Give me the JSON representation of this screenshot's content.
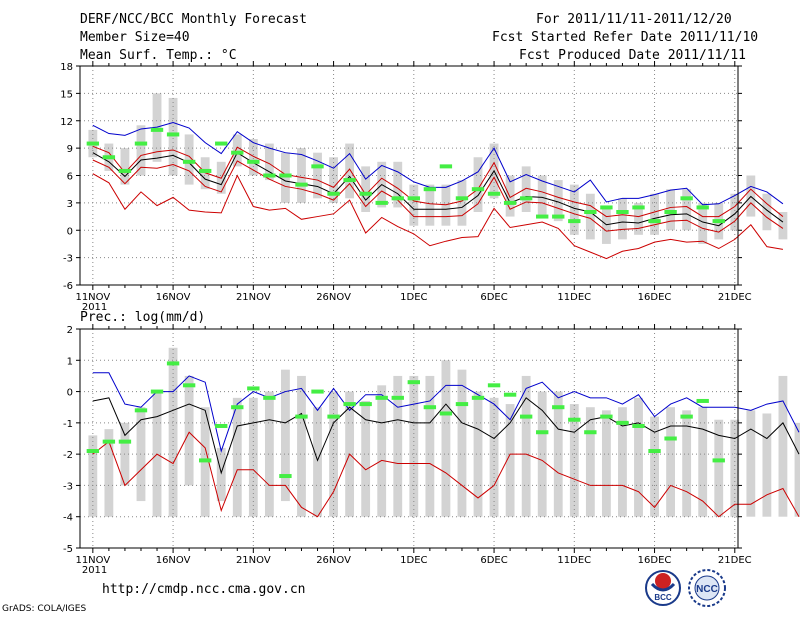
{
  "header": {
    "title": "DERF/NCC/BCC Monthly Forecast",
    "member_size": "Member Size=40",
    "period": "For 2011/11/11-2011/12/20",
    "started": "Fcst Started Refer Date 2011/11/10",
    "produced": "Fcst Produced Date 2011/11/11"
  },
  "footer": {
    "url": "http://cmdp.ncc.cma.gov.cn",
    "grads": "GrADS: COLA/IGES",
    "logo_bcc_text": "BCC",
    "logo_ncc_text": "NCC"
  },
  "colors": {
    "bar": "#d3d3d3",
    "mean": "#000000",
    "upper": "#0000cc",
    "lower": "#cc0000",
    "obs": "#44ee44",
    "grid": "#888888"
  },
  "chart_data": [
    {
      "type": "line",
      "title": "Mean Surf. Temp.: °C",
      "x_start_day": 0,
      "ylim": [
        -6,
        18
      ],
      "yticks": [
        -6,
        -3,
        0,
        3,
        6,
        9,
        12,
        15,
        18
      ],
      "xticks": [
        {
          "day": 0,
          "label": "11NOV",
          "label2": "2011"
        },
        {
          "day": 5,
          "label": "16NOV"
        },
        {
          "day": 10,
          "label": "21NOV"
        },
        {
          "day": 15,
          "label": "26NOV"
        },
        {
          "day": 20,
          "label": "1DEC"
        },
        {
          "day": 25,
          "label": "6DEC"
        },
        {
          "day": 30,
          "label": "11DEC"
        },
        {
          "day": 35,
          "label": "16DEC"
        },
        {
          "day": 40,
          "label": "21DEC"
        }
      ],
      "series": [
        {
          "name": "upper",
          "values": [
            11.5,
            10.6,
            10.4,
            11.1,
            11.3,
            11.8,
            11.2,
            9.6,
            8.4,
            10.8,
            9.6,
            9.0,
            8.5,
            8.3,
            7.6,
            6.8,
            8.4,
            5.6,
            7.1,
            6.4,
            5.3,
            4.7,
            4.7,
            5.4,
            6.4,
            9.0,
            5.3,
            6.1,
            5.4,
            4.8,
            4.2,
            5.5,
            3.1,
            3.5,
            3.5,
            3.9,
            4.4,
            4.6,
            2.8,
            2.9,
            3.8,
            4.8,
            4.2,
            2.9
          ]
        },
        {
          "name": "mean_upper",
          "values": [
            9.2,
            8.5,
            6.3,
            8.2,
            8.6,
            8.8,
            8.1,
            6.3,
            5.7,
            9.1,
            8.1,
            7.3,
            6.1,
            5.8,
            5.5,
            4.7,
            6.7,
            3.9,
            5.7,
            4.6,
            3.2,
            2.9,
            2.8,
            3.2,
            4.5,
            7.4,
            3.6,
            4.6,
            4.2,
            3.6,
            3.1,
            2.7,
            1.5,
            1.7,
            1.5,
            2.0,
            2.5,
            2.6,
            1.5,
            1.5,
            2.6,
            4.5,
            2.9,
            1.5
          ]
        },
        {
          "name": "mean",
          "values": [
            8.5,
            7.5,
            5.9,
            7.7,
            7.9,
            8.2,
            7.4,
            5.6,
            5.0,
            8.5,
            7.4,
            6.4,
            5.4,
            5.1,
            4.8,
            4.0,
            5.9,
            3.3,
            5.0,
            4.0,
            2.3,
            2.3,
            2.3,
            2.5,
            3.8,
            6.5,
            3.0,
            3.7,
            3.6,
            3.1,
            2.4,
            2.0,
            0.6,
            0.9,
            0.8,
            1.3,
            1.7,
            1.8,
            0.9,
            0.5,
            1.8,
            3.7,
            2.2,
            0.9
          ]
        },
        {
          "name": "mean_lower",
          "values": [
            7.7,
            6.9,
            5.1,
            6.9,
            6.8,
            7.2,
            6.5,
            4.8,
            4.2,
            7.6,
            6.6,
            5.6,
            4.8,
            4.5,
            4.0,
            3.3,
            5.1,
            2.6,
            4.3,
            3.3,
            1.5,
            1.5,
            1.5,
            1.6,
            2.9,
            5.8,
            2.3,
            3.1,
            3.0,
            2.4,
            1.8,
            1.3,
            -0.1,
            0.1,
            0.2,
            0.6,
            1.0,
            1.1,
            0.2,
            -0.2,
            1.0,
            3.0,
            1.4,
            0.2
          ]
        },
        {
          "name": "lower",
          "values": [
            6.2,
            5.2,
            2.3,
            4.2,
            2.7,
            3.6,
            2.2,
            2.0,
            1.9,
            6.0,
            2.6,
            2.2,
            2.4,
            1.2,
            1.5,
            1.8,
            3.3,
            -0.3,
            1.4,
            0.4,
            -0.4,
            -1.7,
            -1.2,
            -0.8,
            -0.7,
            2.4,
            0.3,
            0.6,
            0.9,
            0.2,
            -1.7,
            -2.4,
            -3.1,
            -2.3,
            -2.0,
            -1.3,
            -1.0,
            -1.3,
            -1.2,
            -2.0,
            -1.0,
            0.6,
            -1.8,
            -2.1
          ]
        }
      ],
      "bars": [
        [
          8.0,
          11.0
        ],
        [
          6.5,
          9.5
        ],
        [
          5.0,
          9.0
        ],
        [
          6.0,
          11.5
        ],
        [
          7.5,
          15.0
        ],
        [
          6.0,
          14.5
        ],
        [
          5.0,
          10.5
        ],
        [
          4.5,
          8.0
        ],
        [
          4.0,
          7.5
        ],
        [
          7.0,
          10.5
        ],
        [
          6.0,
          10.0
        ],
        [
          5.5,
          9.5
        ],
        [
          3.0,
          8.5
        ],
        [
          3.0,
          9.0
        ],
        [
          3.5,
          8.5
        ],
        [
          3.0,
          8.0
        ],
        [
          3.5,
          9.5
        ],
        [
          2.0,
          7.0
        ],
        [
          2.5,
          7.5
        ],
        [
          2.5,
          7.5
        ],
        [
          0.5,
          5.0
        ],
        [
          0.5,
          5.0
        ],
        [
          0.5,
          5.0
        ],
        [
          0.5,
          5.5
        ],
        [
          2.0,
          8.0
        ],
        [
          3.5,
          9.5
        ],
        [
          1.5,
          6.0
        ],
        [
          2.0,
          7.0
        ],
        [
          1.5,
          6.0
        ],
        [
          1.0,
          5.5
        ],
        [
          -0.5,
          5.0
        ],
        [
          -1.0,
          4.0
        ],
        [
          -1.5,
          2.5
        ],
        [
          -1.0,
          3.5
        ],
        [
          -0.5,
          3.0
        ],
        [
          -0.5,
          4.0
        ],
        [
          0.0,
          4.5
        ],
        [
          0.0,
          4.5
        ],
        [
          -1.5,
          3.0
        ],
        [
          -1.0,
          3.0
        ],
        [
          0.0,
          4.0
        ],
        [
          1.5,
          6.0
        ],
        [
          0.0,
          4.0
        ],
        [
          -1.0,
          2.0
        ]
      ],
      "observed": [
        9.5,
        8.0,
        6.5,
        9.5,
        11.0,
        10.5,
        7.5,
        6.5,
        9.5,
        8.5,
        7.5,
        6.0,
        6.0,
        5.0,
        7.0,
        4.0,
        5.5,
        4.0,
        3.0,
        3.5,
        3.5,
        4.5,
        7.0,
        3.5,
        4.5,
        4.0,
        3.0,
        3.5,
        1.5,
        1.5,
        1.0,
        2.0,
        2.5,
        2.0,
        2.5,
        1.0,
        2.0,
        3.5,
        2.5,
        1.0
      ],
      "observed_start_day": 0
    },
    {
      "type": "line",
      "title": "Prec.: log(mm/d)",
      "ylim": [
        -5,
        2
      ],
      "yticks": [
        -5,
        -4,
        -3,
        -2,
        -1,
        0,
        1,
        2
      ],
      "xticks": [
        {
          "day": 0,
          "label": "11NOV",
          "label2": "2011"
        },
        {
          "day": 5,
          "label": "16NOV"
        },
        {
          "day": 10,
          "label": "21NOV"
        },
        {
          "day": 15,
          "label": "26NOV"
        },
        {
          "day": 20,
          "label": "1DEC"
        },
        {
          "day": 25,
          "label": "6DEC"
        },
        {
          "day": 30,
          "label": "11DEC"
        },
        {
          "day": 35,
          "label": "16DEC"
        },
        {
          "day": 40,
          "label": "21DEC"
        }
      ],
      "series": [
        {
          "name": "upper",
          "values": [
            0.6,
            0.6,
            -0.4,
            -0.5,
            0.0,
            0.0,
            0.5,
            0.3,
            -1.9,
            -0.4,
            0.0,
            -0.2,
            0.0,
            0.1,
            -0.6,
            0.1,
            -0.6,
            -0.1,
            -0.1,
            -0.5,
            -0.4,
            -0.3,
            0.2,
            0.2,
            -0.1,
            -0.4,
            -0.9,
            0.1,
            0.3,
            -0.2,
            0.0,
            -0.2,
            -0.2,
            -0.4,
            -0.1,
            -0.8,
            -0.4,
            -0.2,
            -0.5,
            -0.5,
            -0.5,
            -0.6,
            -0.4,
            -0.3,
            -1.3
          ]
        },
        {
          "name": "mean",
          "values": [
            -0.3,
            -0.2,
            -1.4,
            -0.9,
            -0.8,
            -0.6,
            -0.4,
            -0.6,
            -2.6,
            -1.1,
            -1.0,
            -0.9,
            -1.0,
            -0.7,
            -2.2,
            -1.0,
            -0.5,
            -0.9,
            -1.0,
            -0.9,
            -1.0,
            -1.0,
            -0.4,
            -1.0,
            -1.2,
            -1.5,
            -1.0,
            -0.2,
            -0.6,
            -1.2,
            -1.3,
            -0.9,
            -0.8,
            -1.1,
            -1.0,
            -1.3,
            -1.1,
            -1.1,
            -1.2,
            -1.4,
            -1.5,
            -1.2,
            -1.5,
            -1.0,
            -2.0
          ]
        },
        {
          "name": "lower",
          "values": [
            -2.0,
            -1.6,
            -3.0,
            -2.5,
            -2.0,
            -2.3,
            -1.3,
            -1.8,
            -3.8,
            -2.5,
            -2.5,
            -3.0,
            -3.0,
            -3.7,
            -4.0,
            -3.2,
            -2.0,
            -2.5,
            -2.2,
            -2.3,
            -2.3,
            -2.3,
            -2.6,
            -3.0,
            -3.4,
            -3.0,
            -2.0,
            -2.0,
            -2.2,
            -2.6,
            -2.8,
            -3.0,
            -3.0,
            -3.0,
            -3.2,
            -3.7,
            -3.0,
            -3.2,
            -3.5,
            -4.0,
            -3.6,
            -3.6,
            -3.3,
            -3.1,
            -4.0
          ]
        }
      ],
      "bars": [
        [
          -4.0,
          -1.4
        ],
        [
          -4.0,
          -1.2
        ],
        [
          -3.0,
          -1.0
        ],
        [
          -3.5,
          -0.5
        ],
        [
          -4.0,
          0.0
        ],
        [
          -4.0,
          1.4
        ],
        [
          -3.0,
          0.5
        ],
        [
          -4.0,
          -0.5
        ],
        [
          -3.5,
          -1.8
        ],
        [
          -4.0,
          -0.2
        ],
        [
          -4.0,
          -0.2
        ],
        [
          -4.0,
          0.0
        ],
        [
          -3.5,
          0.7
        ],
        [
          -4.0,
          0.5
        ],
        [
          -4.0,
          -0.5
        ],
        [
          -4.0,
          0.0
        ],
        [
          -4.0,
          0.0
        ],
        [
          -4.0,
          -0.3
        ],
        [
          -4.0,
          0.2
        ],
        [
          -4.0,
          0.5
        ],
        [
          -4.0,
          0.5
        ],
        [
          -4.0,
          0.5
        ],
        [
          -4.0,
          1.0
        ],
        [
          -4.0,
          0.7
        ],
        [
          -4.0,
          0.0
        ],
        [
          -4.0,
          -0.2
        ],
        [
          -4.0,
          -0.4
        ],
        [
          -4.0,
          0.5
        ],
        [
          -4.0,
          0.0
        ],
        [
          -4.0,
          0.0
        ],
        [
          -4.0,
          -0.4
        ],
        [
          -4.0,
          -0.5
        ],
        [
          -4.0,
          -0.6
        ],
        [
          -4.0,
          -0.5
        ],
        [
          -4.0,
          -0.2
        ],
        [
          -4.0,
          -0.8
        ],
        [
          -4.0,
          -0.5
        ],
        [
          -4.0,
          -0.6
        ],
        [
          -4.0,
          -0.5
        ],
        [
          -4.0,
          -0.9
        ],
        [
          -4.0,
          -0.9
        ],
        [
          -4.0,
          -0.6
        ],
        [
          -4.0,
          -0.7
        ],
        [
          -4.0,
          0.5
        ],
        [
          -4.0,
          -1.0
        ]
      ],
      "observed": [
        -1.9,
        -1.6,
        -1.6,
        -0.6,
        0.0,
        0.9,
        0.2,
        -2.2,
        -1.1,
        -0.5,
        0.1,
        -0.2,
        -2.7,
        -0.8,
        0.0,
        -0.8,
        -0.4,
        -0.4,
        -0.2,
        -0.2,
        0.3,
        -0.5,
        -0.7,
        -0.4,
        -0.2,
        0.2,
        -0.1,
        -0.8,
        -1.3,
        -0.5,
        -0.9,
        -1.3,
        -0.8,
        -1.0,
        -1.1,
        -1.9,
        -1.5,
        -0.8,
        -0.3,
        -2.2
      ],
      "observed_start_day": 0
    }
  ]
}
